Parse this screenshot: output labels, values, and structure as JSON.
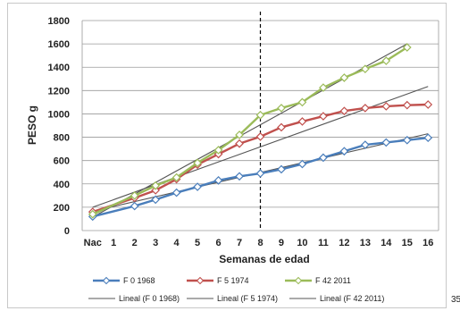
{
  "page_number": "35",
  "colors": {
    "F 0 1968": "#4a7ebb",
    "F 5 1974": "#c0504d",
    "F 42 2011": "#9bbb59",
    "trend": "#555555",
    "grid": "#9a9a9a",
    "divider": "#000000"
  },
  "chart_data": {
    "type": "line",
    "title": "",
    "xlabel": "Semanas de edad",
    "ylabel": "PESO  g",
    "categories": [
      "Nac",
      "1",
      "2",
      "3",
      "4",
      "5",
      "6",
      "7",
      "8",
      "9",
      "10",
      "11",
      "12",
      "13",
      "14",
      "15",
      "16"
    ],
    "ylim": [
      0,
      1800
    ],
    "yticks": [
      0,
      200,
      400,
      600,
      800,
      1000,
      1200,
      1400,
      1600,
      1800
    ],
    "grid": true,
    "vertical_marker": {
      "category": "8",
      "style": "dashed"
    },
    "legend_position": "bottom",
    "series": [
      {
        "name": "F 0 1968",
        "marker": "diamond",
        "values": [
          120,
          null,
          210,
          265,
          325,
          375,
          430,
          465,
          490,
          525,
          570,
          625,
          680,
          735,
          755,
          775,
          795
        ]
      },
      {
        "name": "F 5 1974",
        "marker": "diamond",
        "values": [
          160,
          null,
          280,
          345,
          440,
          565,
          655,
          745,
          805,
          885,
          935,
          980,
          1025,
          1050,
          1065,
          1075,
          1080
        ]
      },
      {
        "name": "F 42 2011",
        "marker": "diamond",
        "values": [
          140,
          null,
          300,
          385,
          455,
          580,
          690,
          820,
          990,
          1050,
          1100,
          1225,
          1310,
          1385,
          1455,
          1570,
          null
        ]
      }
    ],
    "trendlines": [
      {
        "name": "Lineal (F 0 1968)",
        "x": [
          0,
          16
        ],
        "values": [
          165,
          830
        ]
      },
      {
        "name": "Lineal (F 5 1974)",
        "x": [
          0,
          16
        ],
        "values": [
          200,
          1235
        ]
      },
      {
        "name": "Lineal (F 42 2011)",
        "x": [
          0,
          15
        ],
        "values": [
          115,
          1600
        ]
      }
    ]
  }
}
